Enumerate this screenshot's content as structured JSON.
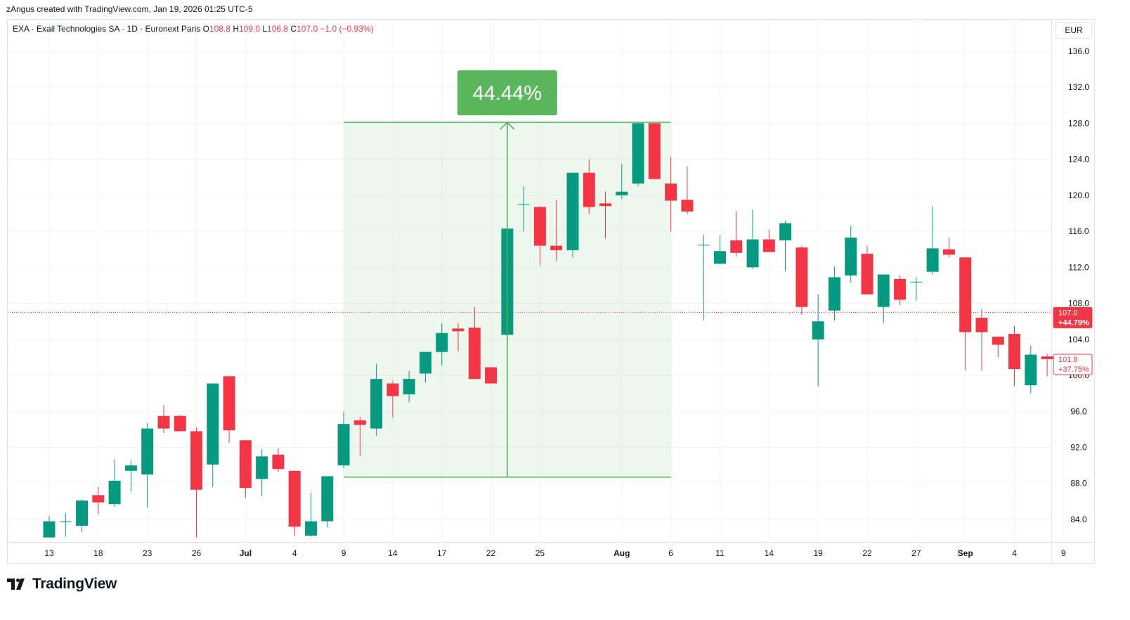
{
  "header": {
    "credit": "zAngus created with TradingView.com, Jan 19, 2026 01:25 UTC-5"
  },
  "legend": {
    "symbol": "EXA · Exail Technologies SA · 1D · Euronext Paris",
    "open_label": "O",
    "open": "108.8",
    "high_label": "H",
    "high": "109.0",
    "low_label": "L",
    "low": "106.8",
    "close_label": "C",
    "close": "107.0",
    "change": "−1.0 (−0.93%)"
  },
  "currency": "EUR",
  "logo_text": "TradingView",
  "colors": {
    "up": "#089981",
    "down": "#f23645",
    "measure": "#4caf50",
    "measure_fill": "#4caf50",
    "grid": "#f0f3fa",
    "price_line": "#f23645"
  },
  "chart_data": {
    "type": "candlestick",
    "y_axis": {
      "min": 81.5,
      "max": 139.5,
      "ticks": [
        84.0,
        88.0,
        92.0,
        96.0,
        100.0,
        104.0,
        108.0,
        112.0,
        116.0,
        120.0,
        124.0,
        128.0,
        132.0,
        136.0
      ]
    },
    "x_ticks": [
      {
        "label": "13",
        "index": 0
      },
      {
        "label": "18",
        "index": 3
      },
      {
        "label": "23",
        "index": 6
      },
      {
        "label": "26",
        "index": 9
      },
      {
        "label": "Jul",
        "index": 12
      },
      {
        "label": "4",
        "index": 15
      },
      {
        "label": "9",
        "index": 18
      },
      {
        "label": "14",
        "index": 21
      },
      {
        "label": "17",
        "index": 24
      },
      {
        "label": "22",
        "index": 27
      },
      {
        "label": "25",
        "index": 30
      },
      {
        "label": "Aug",
        "index": 35
      },
      {
        "label": "6",
        "index": 38
      },
      {
        "label": "11",
        "index": 41
      },
      {
        "label": "14",
        "index": 44
      },
      {
        "label": "19",
        "index": 47
      },
      {
        "label": "22",
        "index": 50
      },
      {
        "label": "27",
        "index": 53
      },
      {
        "label": "Sep",
        "index": 56
      },
      {
        "label": "4",
        "index": 59
      },
      {
        "label": "9",
        "index": 62
      }
    ],
    "candles": [
      {
        "o": 82.0,
        "h": 84.4,
        "l": 82.0,
        "c": 83.8
      },
      {
        "o": 83.8,
        "h": 84.7,
        "l": 82.1,
        "c": 83.8
      },
      {
        "o": 83.3,
        "h": 86.2,
        "l": 82.6,
        "c": 86.1
      },
      {
        "o": 86.7,
        "h": 87.6,
        "l": 84.6,
        "c": 85.9
      },
      {
        "o": 85.7,
        "h": 90.7,
        "l": 85.4,
        "c": 88.3
      },
      {
        "o": 89.4,
        "h": 90.6,
        "l": 87.1,
        "c": 90.0
      },
      {
        "o": 89.0,
        "h": 94.7,
        "l": 85.3,
        "c": 94.1
      },
      {
        "o": 95.5,
        "h": 96.7,
        "l": 93.6,
        "c": 94.1
      },
      {
        "o": 95.5,
        "h": 95.6,
        "l": 93.8,
        "c": 93.8
      },
      {
        "o": 93.8,
        "h": 94.2,
        "l": 82.0,
        "c": 87.3
      },
      {
        "o": 90.1,
        "h": 99.1,
        "l": 87.6,
        "c": 99.1
      },
      {
        "o": 99.9,
        "h": 99.9,
        "l": 92.5,
        "c": 93.9
      },
      {
        "o": 92.8,
        "h": 92.8,
        "l": 86.4,
        "c": 87.5
      },
      {
        "o": 88.5,
        "h": 91.8,
        "l": 86.6,
        "c": 91.0
      },
      {
        "o": 91.2,
        "h": 91.9,
        "l": 89.3,
        "c": 89.6
      },
      {
        "o": 89.4,
        "h": 89.4,
        "l": 82.2,
        "c": 83.2
      },
      {
        "o": 82.2,
        "h": 87.0,
        "l": 82.1,
        "c": 83.8
      },
      {
        "o": 83.8,
        "h": 88.8,
        "l": 83.1,
        "c": 88.8
      },
      {
        "o": 90.0,
        "h": 96.0,
        "l": 89.7,
        "c": 94.6
      },
      {
        "o": 95.0,
        "h": 95.4,
        "l": 91.0,
        "c": 94.5
      },
      {
        "o": 94.1,
        "h": 101.3,
        "l": 93.3,
        "c": 99.6
      },
      {
        "o": 99.1,
        "h": 99.4,
        "l": 95.3,
        "c": 97.7
      },
      {
        "o": 97.9,
        "h": 100.5,
        "l": 97.0,
        "c": 99.6
      },
      {
        "o": 100.2,
        "h": 102.6,
        "l": 99.2,
        "c": 102.6
      },
      {
        "o": 102.6,
        "h": 105.8,
        "l": 101.1,
        "c": 104.7
      },
      {
        "o": 105.2,
        "h": 105.8,
        "l": 102.7,
        "c": 104.9
      },
      {
        "o": 105.3,
        "h": 107.6,
        "l": 99.6,
        "c": 99.6
      },
      {
        "o": 100.9,
        "h": 100.9,
        "l": 99.1,
        "c": 99.1
      },
      {
        "o": 104.5,
        "h": 116.3,
        "l": 103.9,
        "c": 116.3
      },
      {
        "o": 119.0,
        "h": 121.0,
        "l": 116.0,
        "c": 119.0
      },
      {
        "o": 118.7,
        "h": 118.8,
        "l": 112.2,
        "c": 114.4
      },
      {
        "o": 114.4,
        "h": 119.5,
        "l": 112.7,
        "c": 113.9
      },
      {
        "o": 113.9,
        "h": 122.5,
        "l": 113.1,
        "c": 122.5
      },
      {
        "o": 122.5,
        "h": 124.0,
        "l": 117.9,
        "c": 118.7
      },
      {
        "o": 119.1,
        "h": 120.4,
        "l": 115.2,
        "c": 118.8
      },
      {
        "o": 120.0,
        "h": 123.5,
        "l": 119.6,
        "c": 120.4
      },
      {
        "o": 121.3,
        "h": 128.0,
        "l": 121.0,
        "c": 128.0
      },
      {
        "o": 128.0,
        "h": 128.0,
        "l": 121.8,
        "c": 121.8
      },
      {
        "o": 121.3,
        "h": 124.3,
        "l": 116.0,
        "c": 119.4
      },
      {
        "o": 119.5,
        "h": 123.2,
        "l": 117.9,
        "c": 118.2
      },
      {
        "o": 114.5,
        "h": 115.6,
        "l": 106.1,
        "c": 114.5
      },
      {
        "o": 112.4,
        "h": 115.6,
        "l": 112.3,
        "c": 113.8
      },
      {
        "o": 115.0,
        "h": 118.2,
        "l": 113.2,
        "c": 113.6
      },
      {
        "o": 112.0,
        "h": 118.4,
        "l": 111.8,
        "c": 115.1
      },
      {
        "o": 115.1,
        "h": 116.2,
        "l": 113.7,
        "c": 113.7
      },
      {
        "o": 115.0,
        "h": 117.2,
        "l": 111.6,
        "c": 116.9
      },
      {
        "o": 114.2,
        "h": 114.4,
        "l": 106.7,
        "c": 107.6
      },
      {
        "o": 104.0,
        "h": 109.0,
        "l": 98.8,
        "c": 106.0
      },
      {
        "o": 107.2,
        "h": 112.1,
        "l": 106.1,
        "c": 110.9
      },
      {
        "o": 111.1,
        "h": 116.6,
        "l": 110.3,
        "c": 115.3
      },
      {
        "o": 113.5,
        "h": 114.4,
        "l": 109.0,
        "c": 109.0
      },
      {
        "o": 107.6,
        "h": 111.2,
        "l": 105.8,
        "c": 111.2
      },
      {
        "o": 110.7,
        "h": 111.1,
        "l": 107.8,
        "c": 108.4
      },
      {
        "o": 110.4,
        "h": 110.9,
        "l": 108.3,
        "c": 110.4
      },
      {
        "o": 111.5,
        "h": 118.8,
        "l": 111.2,
        "c": 114.1
      },
      {
        "o": 114.0,
        "h": 115.3,
        "l": 113.1,
        "c": 113.4
      },
      {
        "o": 113.1,
        "h": 113.1,
        "l": 100.6,
        "c": 104.8
      },
      {
        "o": 106.4,
        "h": 107.4,
        "l": 100.5,
        "c": 104.8
      },
      {
        "o": 104.3,
        "h": 104.3,
        "l": 102.0,
        "c": 103.4
      },
      {
        "o": 104.6,
        "h": 105.5,
        "l": 98.8,
        "c": 100.7
      },
      {
        "o": 98.9,
        "h": 103.3,
        "l": 98.0,
        "c": 102.3
      },
      {
        "o": 102.1,
        "h": 102.4,
        "l": 99.9,
        "c": 101.8
      }
    ],
    "measure": {
      "from_index": 18,
      "to_index": 38,
      "from_price": 88.7,
      "to_price": 128.1,
      "arrow_index": 28,
      "label": "44.44%"
    },
    "price_labels": [
      {
        "price": 107.0,
        "value": "107.0",
        "change": "+44.79%",
        "style": "filled"
      },
      {
        "price": 101.8,
        "value": "101.8",
        "change": "+37.75%",
        "style": "outline"
      }
    ],
    "current_price_line": 107.0
  }
}
